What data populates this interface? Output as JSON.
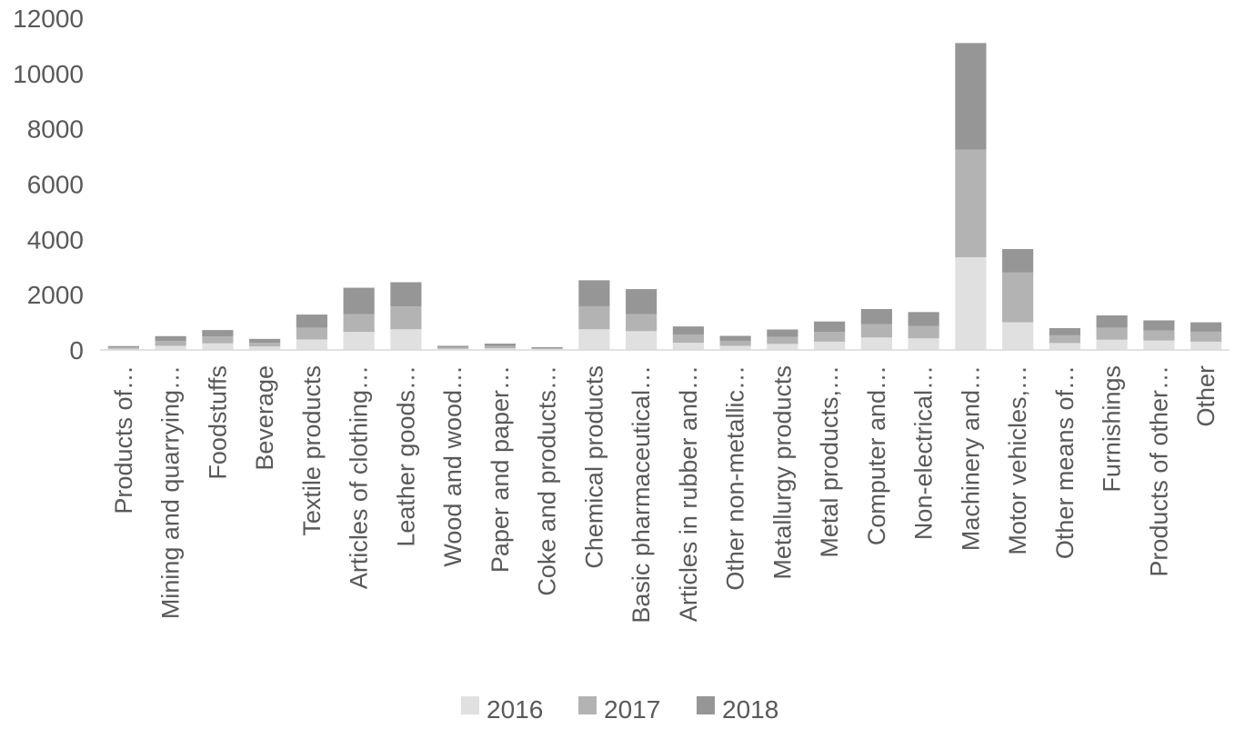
{
  "chart_data": {
    "type": "bar",
    "stacked": true,
    "title": "",
    "xlabel": "",
    "ylabel": "",
    "ylim": [
      0,
      12000
    ],
    "yticks": [
      0,
      2000,
      4000,
      6000,
      8000,
      10000,
      12000
    ],
    "grid": false,
    "legend": "bottom",
    "categories": [
      "Products of…",
      "Mining and quarrying…",
      "Foodstuffs",
      "Beverage",
      "Textile products",
      "Articles of clothing…",
      "Leather goods…",
      "Wood and wood…",
      "Paper and paper…",
      "Coke and products…",
      "Chemical products",
      "Basic pharmaceutical…",
      "Articles in rubber and…",
      "Other non-metallic…",
      "Metallurgy products",
      "Metal products,…",
      "Computer and…",
      "Non-electrical…",
      "Machinery and…",
      "Motor vehicles,…",
      "Other means of…",
      "Furnishings",
      "Products of other…",
      "Other"
    ],
    "series": [
      {
        "name": "2016",
        "color": "#e0e0e0",
        "values": [
          40,
          150,
          240,
          130,
          380,
          650,
          750,
          40,
          60,
          30,
          750,
          680,
          260,
          150,
          220,
          300,
          450,
          420,
          3350,
          1000,
          250,
          370,
          340,
          300
        ]
      },
      {
        "name": "2017",
        "color": "#b3b3b3",
        "values": [
          50,
          170,
          250,
          130,
          420,
          650,
          820,
          60,
          80,
          30,
          830,
          620,
          300,
          180,
          250,
          350,
          480,
          450,
          3900,
          1800,
          280,
          430,
          360,
          360
        ]
      },
      {
        "name": "2018",
        "color": "#969696",
        "values": [
          50,
          180,
          230,
          140,
          480,
          950,
          880,
          50,
          90,
          40,
          940,
          900,
          290,
          180,
          270,
          380,
          550,
          500,
          3850,
          850,
          260,
          450,
          370,
          340
        ]
      }
    ]
  }
}
